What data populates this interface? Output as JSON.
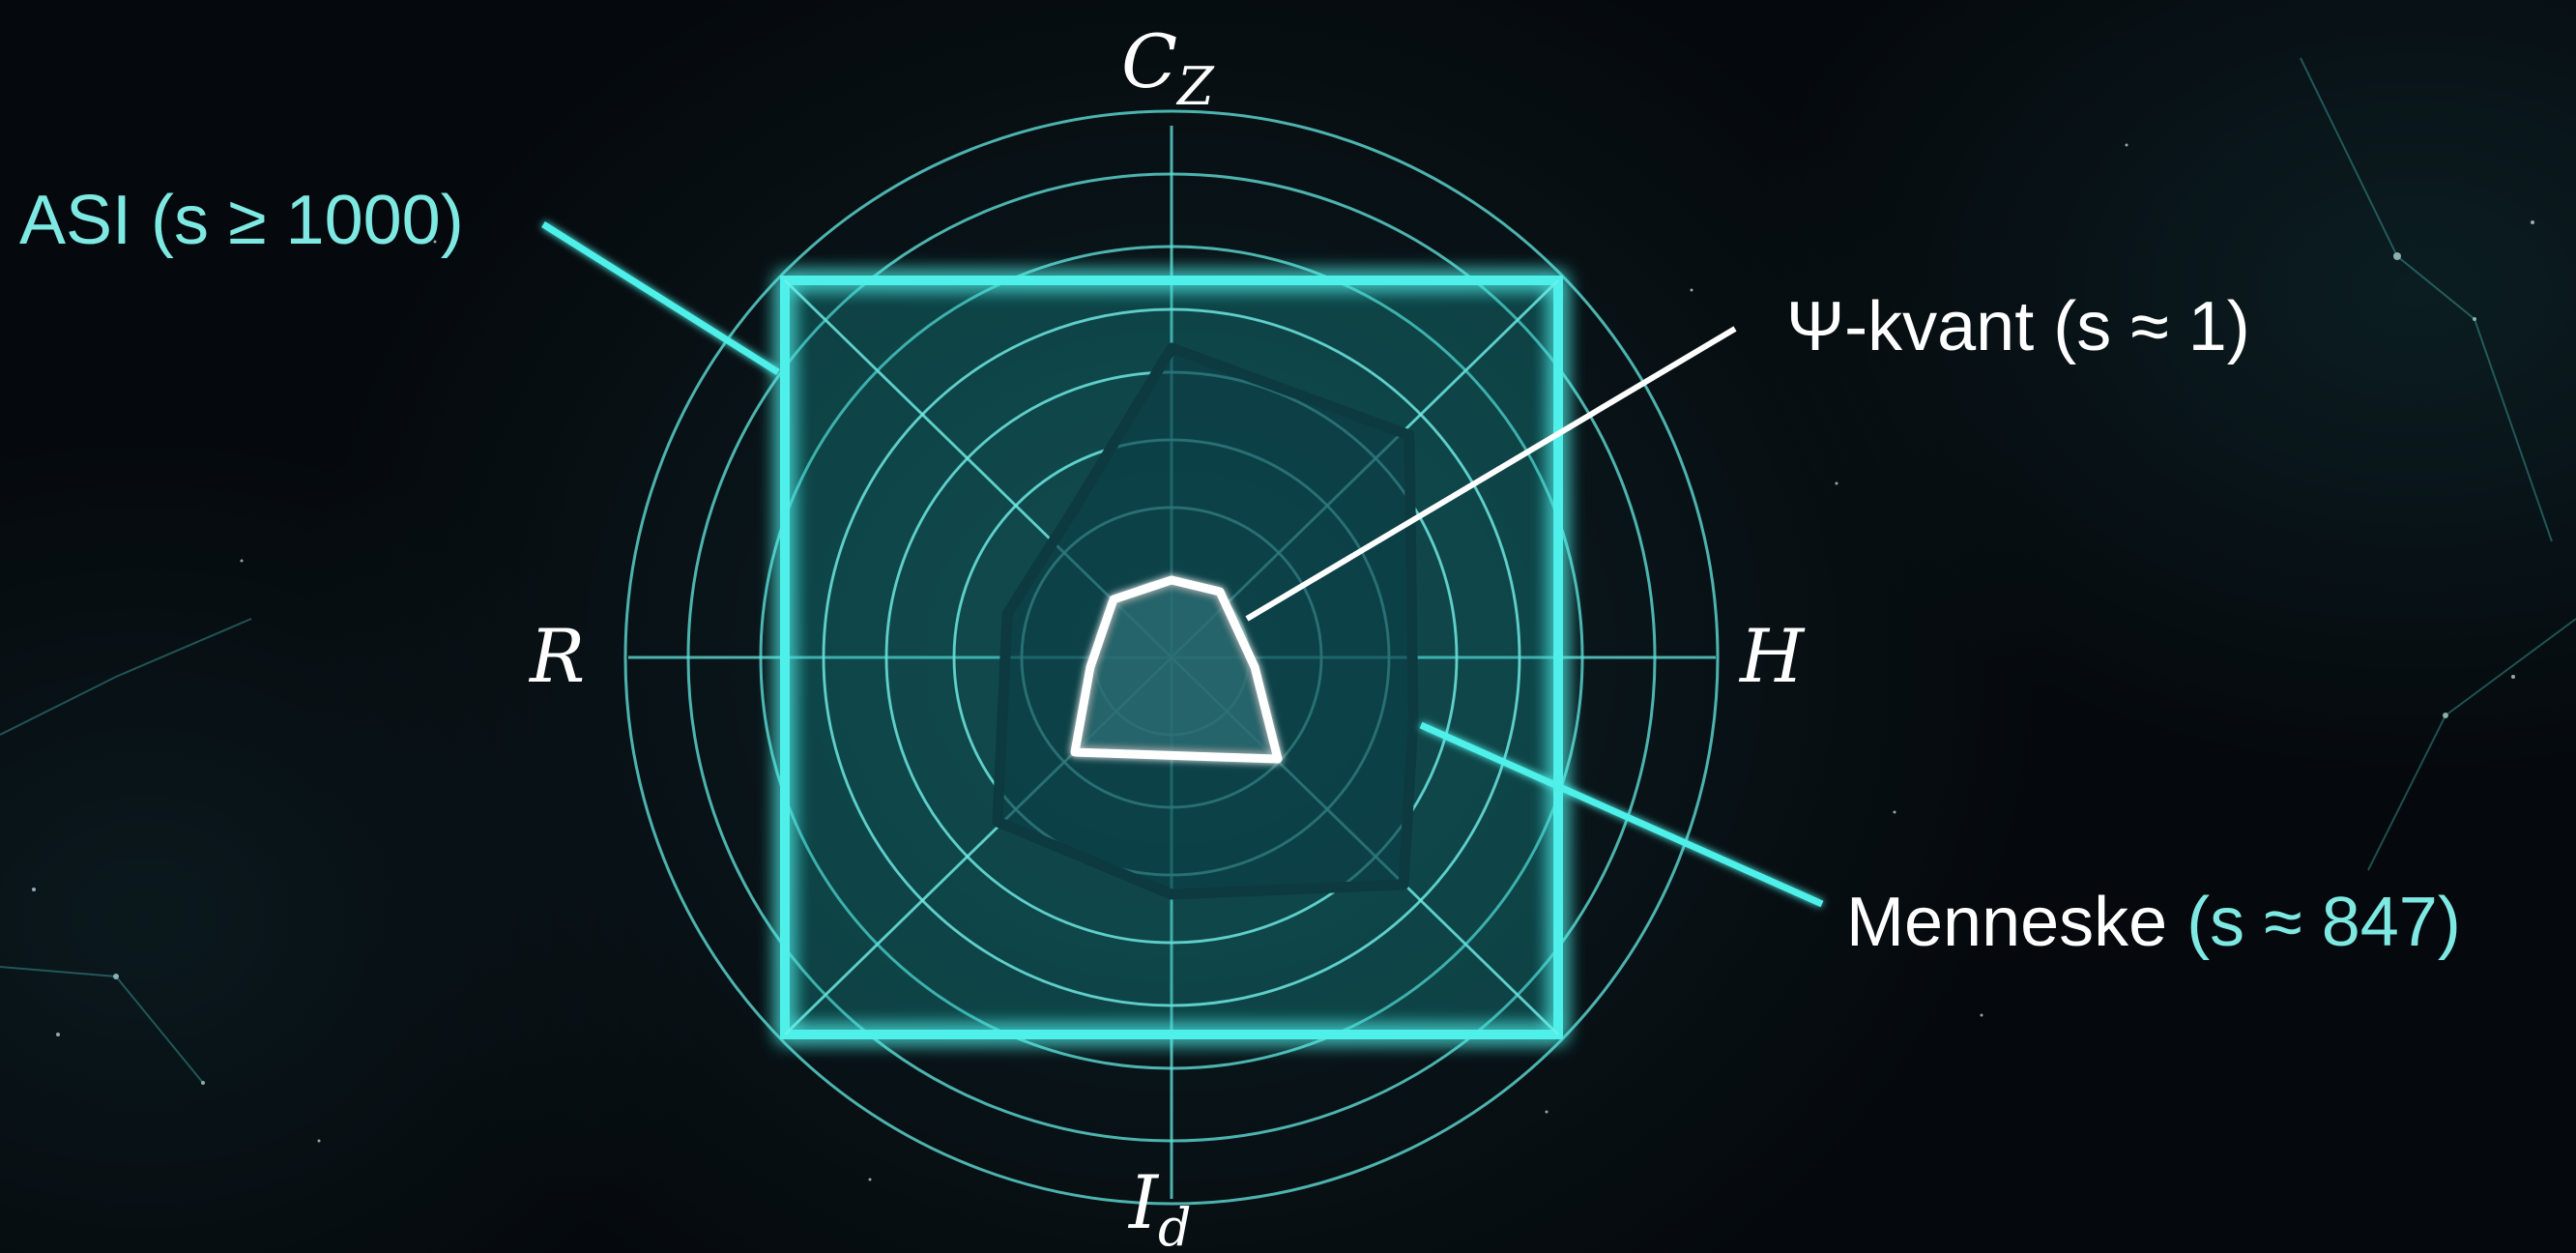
{
  "axes": {
    "top": {
      "main": "C",
      "sub": "Z"
    },
    "left": {
      "main": "R"
    },
    "right": {
      "main": "H"
    },
    "bottom": {
      "main": "I",
      "sub": "d"
    }
  },
  "callouts": {
    "asi": "ASI (s ≥ 1000)",
    "psi_kvant": "Ψ-kvant (s ≈ 1)",
    "menneske_name": "Menneske ",
    "menneske_value": "(s ≈ 847)"
  },
  "colors": {
    "cyan": "#4ff0ea",
    "cyan_soft": "#7ee8e2",
    "white": "#ffffff",
    "human_outline": "#0c3a40",
    "background": "#05090d"
  }
}
